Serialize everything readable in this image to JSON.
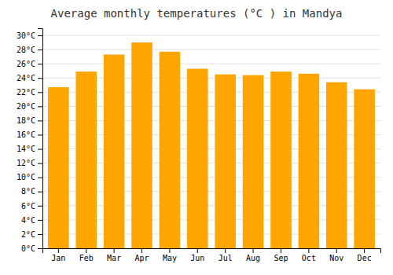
{
  "chart_data": {
    "type": "bar",
    "title": "Average monthly temperatures (°C ) in Mandya",
    "categories": [
      "Jan",
      "Feb",
      "Mar",
      "Apr",
      "May",
      "Jun",
      "Jul",
      "Aug",
      "Sep",
      "Oct",
      "Nov",
      "Dec"
    ],
    "values": [
      22.7,
      24.9,
      27.3,
      29.0,
      27.7,
      25.3,
      24.5,
      24.4,
      24.9,
      24.6,
      23.4,
      22.4
    ],
    "color": "#FFA500",
    "ylim": [
      0,
      31
    ],
    "yticks": [
      {
        "value": 0,
        "label": "0°C"
      },
      {
        "value": 2,
        "label": "2°C"
      },
      {
        "value": 4,
        "label": "4°C"
      },
      {
        "value": 6,
        "label": "6°C"
      },
      {
        "value": 8,
        "label": "8°C"
      },
      {
        "value": 10,
        "label": "10°C"
      },
      {
        "value": 12,
        "label": "12°C"
      },
      {
        "value": 14,
        "label": "14°C"
      },
      {
        "value": 16,
        "label": "16°C"
      },
      {
        "value": 18,
        "label": "18°C"
      },
      {
        "value": 20,
        "label": "20°C"
      },
      {
        "value": 22,
        "label": "22°C"
      },
      {
        "value": 24,
        "label": "24°C"
      },
      {
        "value": 26,
        "label": "26°C"
      },
      {
        "value": 28,
        "label": "28°C"
      },
      {
        "value": 30,
        "label": "30°C"
      }
    ],
    "grid": true
  }
}
